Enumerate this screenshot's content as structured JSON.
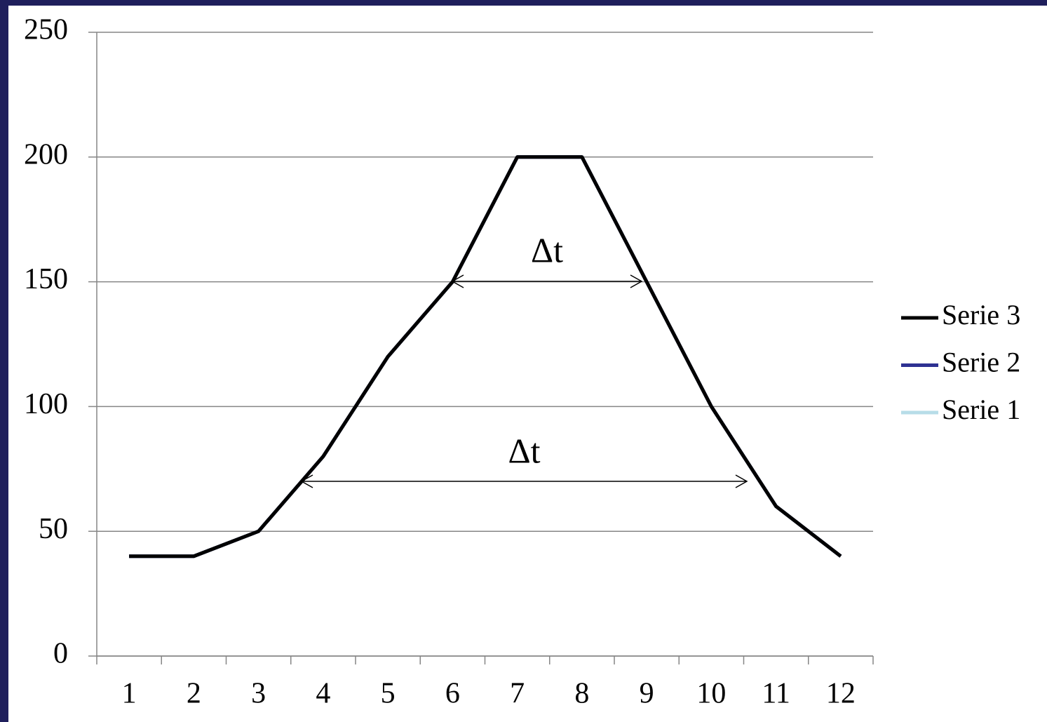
{
  "chart_data": {
    "type": "line",
    "categories": [
      "1",
      "2",
      "3",
      "4",
      "5",
      "6",
      "7",
      "8",
      "9",
      "10",
      "11",
      "12"
    ],
    "series": [
      {
        "name": "Serie 1",
        "color": "#b7dde8",
        "values": [
          40,
          40,
          50,
          80,
          120,
          150,
          200,
          200,
          150,
          100,
          60,
          40
        ]
      },
      {
        "name": "Serie 2",
        "color": "#2e3192",
        "values": [
          40,
          40,
          50,
          80,
          120,
          150,
          200,
          200,
          150,
          100,
          60,
          40
        ]
      },
      {
        "name": "Serie 3",
        "color": "#000000",
        "values": [
          40,
          40,
          50,
          80,
          120,
          150,
          200,
          200,
          150,
          100,
          60,
          40
        ]
      }
    ],
    "ylim": [
      0,
      250
    ],
    "yticks": [
      0,
      50,
      100,
      150,
      200,
      250
    ],
    "grid": true,
    "legend": "right",
    "annotations": [
      "Δt",
      "Δt"
    ]
  }
}
